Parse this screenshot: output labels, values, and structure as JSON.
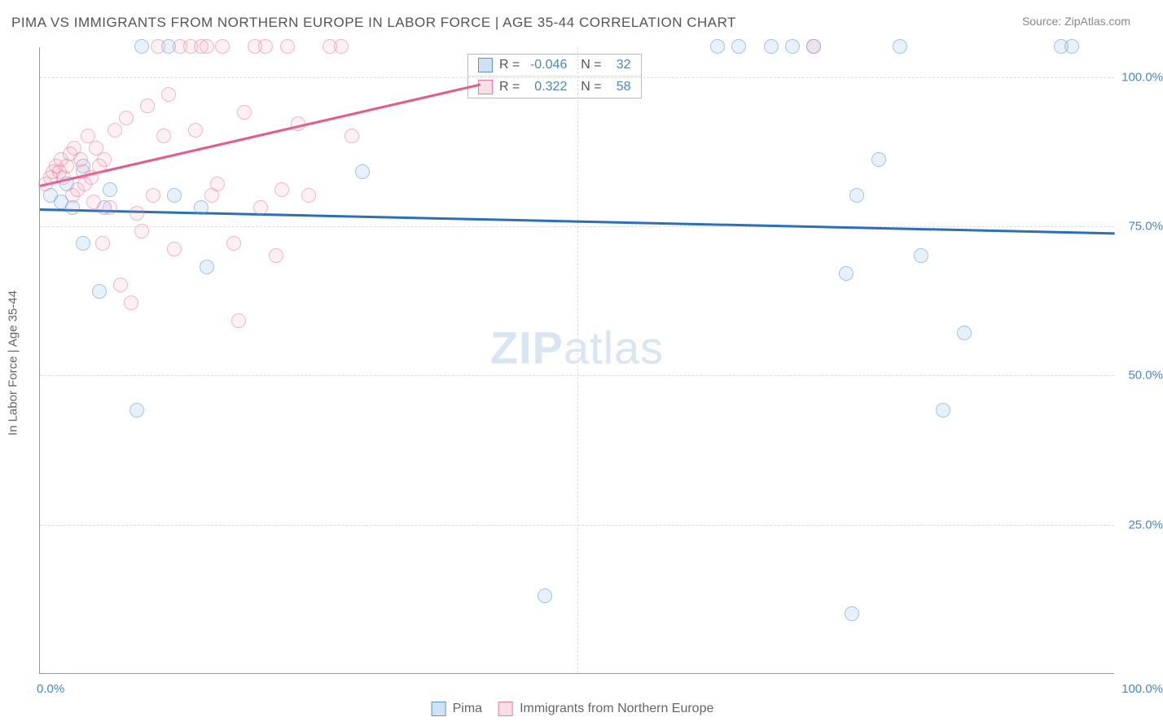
{
  "title": "PIMA VS IMMIGRANTS FROM NORTHERN EUROPE IN LABOR FORCE | AGE 35-44 CORRELATION CHART",
  "source": "Source: ZipAtlas.com",
  "ylabel": "In Labor Force | Age 35-44",
  "watermark_a": "ZIP",
  "watermark_b": "atlas",
  "chart": {
    "type": "scatter",
    "xlim": [
      0,
      100
    ],
    "ylim": [
      0,
      105
    ],
    "xticks": [
      {
        "v": 0,
        "label": "0.0%"
      },
      {
        "v": 100,
        "label": "100.0%"
      }
    ],
    "yticks": [
      {
        "v": 25,
        "label": "25.0%"
      },
      {
        "v": 50,
        "label": "50.0%"
      },
      {
        "v": 75,
        "label": "75.0%"
      },
      {
        "v": 100,
        "label": "100.0%"
      }
    ],
    "grid_x": [
      50
    ],
    "grid_y": [
      25,
      50,
      75,
      100
    ],
    "background_color": "#ffffff",
    "grid_color": "#dddddd",
    "axis_color": "#999999",
    "series": [
      {
        "name": "Pima",
        "color_fill": "rgba(120,170,220,0.3)",
        "color_stroke": "#5b94d0",
        "marker": "circle",
        "marker_size": 18,
        "r": -0.046,
        "n": 32,
        "trend": {
          "x0": 0,
          "y0": 78,
          "x1": 100,
          "y1": 74,
          "color": "#2b6fb8",
          "width": 2.5
        },
        "points": [
          [
            1,
            80
          ],
          [
            2,
            79
          ],
          [
            2.5,
            82
          ],
          [
            3,
            78
          ],
          [
            4,
            85
          ],
          [
            4,
            72
          ],
          [
            5.5,
            64
          ],
          [
            6,
            78
          ],
          [
            6.5,
            81
          ],
          [
            9,
            44
          ],
          [
            9.5,
            105
          ],
          [
            12,
            105
          ],
          [
            12.5,
            80
          ],
          [
            15,
            78
          ],
          [
            15.5,
            68
          ],
          [
            30,
            84
          ],
          [
            47,
            13
          ],
          [
            63,
            105
          ],
          [
            65,
            105
          ],
          [
            68,
            105
          ],
          [
            70,
            105
          ],
          [
            72,
            105
          ],
          [
            75,
            67
          ],
          [
            76,
            80
          ],
          [
            75.5,
            10
          ],
          [
            78,
            86
          ],
          [
            80,
            105
          ],
          [
            82,
            70
          ],
          [
            84,
            44
          ],
          [
            86,
            57
          ],
          [
            96,
            105
          ],
          [
            95,
            105
          ]
        ]
      },
      {
        "name": "Immigrants from Northern Europe",
        "color_fill": "rgba(240,150,175,0.25)",
        "color_stroke": "#e77ba0",
        "marker": "circle",
        "marker_size": 18,
        "r": 0.322,
        "n": 58,
        "trend": {
          "x0": 0,
          "y0": 82,
          "x1": 41,
          "y1": 99,
          "color": "#e55a8a",
          "width": 2.5
        },
        "points": [
          [
            0.5,
            82
          ],
          [
            1,
            83
          ],
          [
            1.2,
            84
          ],
          [
            1.5,
            85
          ],
          [
            1.8,
            84
          ],
          [
            2,
            86
          ],
          [
            2.2,
            83
          ],
          [
            2.5,
            85
          ],
          [
            2.8,
            87
          ],
          [
            3,
            80
          ],
          [
            3.2,
            88
          ],
          [
            3.5,
            81
          ],
          [
            3.8,
            86
          ],
          [
            4,
            84
          ],
          [
            4.2,
            82
          ],
          [
            4.5,
            90
          ],
          [
            4.8,
            83
          ],
          [
            5,
            79
          ],
          [
            5.2,
            88
          ],
          [
            5.5,
            85
          ],
          [
            5.8,
            72
          ],
          [
            6,
            86
          ],
          [
            6.5,
            78
          ],
          [
            7,
            91
          ],
          [
            7.5,
            65
          ],
          [
            8,
            93
          ],
          [
            8.5,
            62
          ],
          [
            9,
            77
          ],
          [
            9.5,
            74
          ],
          [
            10,
            95
          ],
          [
            10.5,
            80
          ],
          [
            11,
            105
          ],
          [
            11.5,
            90
          ],
          [
            12,
            97
          ],
          [
            12.5,
            71
          ],
          [
            13,
            105
          ],
          [
            14,
            105
          ],
          [
            14.5,
            91
          ],
          [
            15,
            105
          ],
          [
            15.5,
            105
          ],
          [
            16,
            80
          ],
          [
            16.5,
            82
          ],
          [
            17,
            105
          ],
          [
            18,
            72
          ],
          [
            18.5,
            59
          ],
          [
            19,
            94
          ],
          [
            20,
            105
          ],
          [
            20.5,
            78
          ],
          [
            21,
            105
          ],
          [
            22,
            70
          ],
          [
            22.5,
            81
          ],
          [
            23,
            105
          ],
          [
            24,
            92
          ],
          [
            25,
            80
          ],
          [
            27,
            105
          ],
          [
            28,
            105
          ],
          [
            72,
            105
          ],
          [
            29,
            90
          ]
        ]
      }
    ]
  },
  "legend_bottom": [
    {
      "swatch": "blue",
      "label": "Pima"
    },
    {
      "swatch": "pink",
      "label": "Immigrants from Northern Europe"
    }
  ],
  "stats_box": [
    {
      "swatch": "blue",
      "r": "-0.046",
      "n": "32"
    },
    {
      "swatch": "pink",
      "r": "0.322",
      "n": "58"
    }
  ]
}
